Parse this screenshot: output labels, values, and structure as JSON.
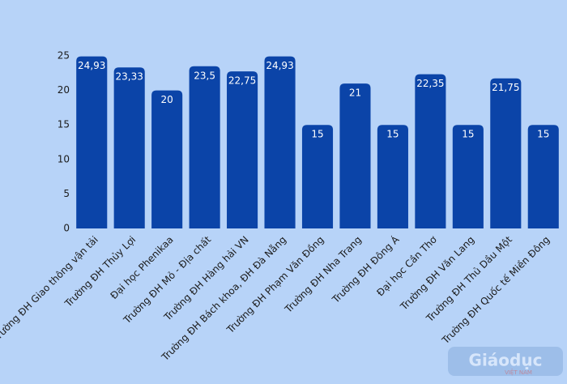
{
  "chart_data": {
    "type": "bar",
    "categories": [
      "Trường ĐH Giao thông vận tải",
      "Trường ĐH Thủy Lợi",
      "Đại học Phenikaa",
      "Trường ĐH Mỏ - Địa chất",
      "Trường ĐH Hàng hải VN",
      "Trường ĐH Bách khoa, ĐH Đà Nẵng",
      "Trường ĐH Phạm Văn Đồng",
      "Trường ĐH Nha Trang",
      "Trường ĐH Đông Á",
      "Đại học Cần Thơ",
      "Trường ĐH Văn Lang",
      "Trường ĐH Thủ Dầu Một",
      "Trường ĐH Quốc tế Miền Đông"
    ],
    "values": [
      24.93,
      23.33,
      20,
      23.5,
      22.75,
      24.93,
      15,
      21,
      15,
      22.35,
      15,
      21.75,
      15
    ],
    "value_labels": [
      "24,93",
      "23,33",
      "20",
      "23,5",
      "22,75",
      "24,93",
      "15",
      "21",
      "15",
      "22,35",
      "15",
      "21,75",
      "15"
    ],
    "color": "#0b44a8",
    "ylim": [
      0,
      25
    ],
    "yticks": [
      0,
      5,
      10,
      15,
      20,
      25
    ],
    "grid": false,
    "watermark": "Giáodục",
    "watermark_sub": "VIỆT NAM"
  }
}
